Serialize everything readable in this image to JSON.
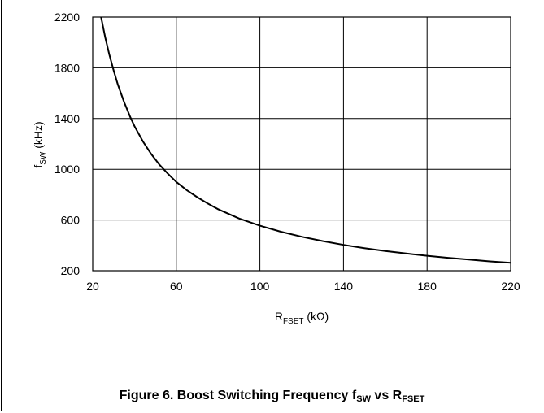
{
  "chart_data": {
    "type": "line",
    "xlabel_main": "R",
    "xlabel_sub": "FSET",
    "xlabel_unit": " (kΩ)",
    "ylabel_main": "f",
    "ylabel_sub": "SW",
    "ylabel_unit": " (kHz)",
    "xlim": [
      20,
      220
    ],
    "ylim": [
      200,
      2200
    ],
    "xticks": [
      20,
      60,
      100,
      140,
      180,
      220
    ],
    "yticks": [
      200,
      600,
      1000,
      1400,
      1800,
      2200
    ],
    "grid": true,
    "series": [
      {
        "x": [
          24,
          26,
          28,
          30,
          32,
          35,
          38,
          40,
          44,
          48,
          52,
          56,
          60,
          65,
          70,
          75,
          80,
          90,
          100,
          110,
          120,
          130,
          140,
          150,
          160,
          170,
          180,
          190,
          200,
          210,
          220
        ],
        "y": [
          2200,
          2040,
          1900,
          1780,
          1670,
          1530,
          1410,
          1340,
          1220,
          1120,
          1035,
          965,
          900,
          835,
          780,
          730,
          685,
          612,
          555,
          508,
          468,
          434,
          404,
          378,
          356,
          336,
          318,
          302,
          288,
          274,
          262
        ]
      }
    ]
  },
  "caption": {
    "prefix": "Figure 6. Boost Switching Frequency f",
    "sub1": "SW",
    "middle": " vs R",
    "sub2": "FSET"
  }
}
